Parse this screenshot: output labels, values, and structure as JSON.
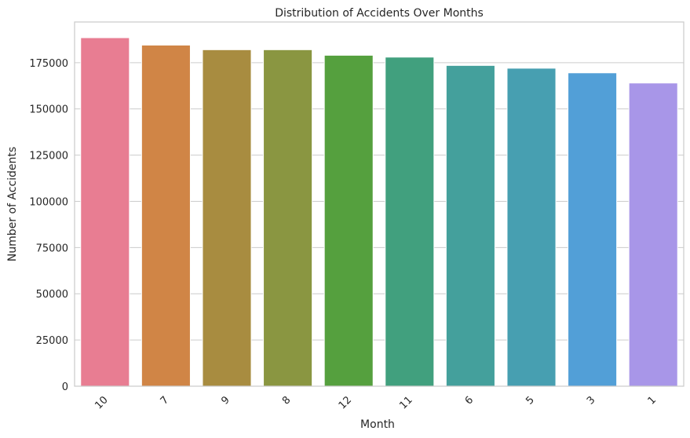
{
  "chart_data": {
    "type": "bar",
    "title": "Distribution of Accidents Over Months",
    "xlabel": "Month",
    "ylabel": "Number of Accidents",
    "categories": [
      "10",
      "7",
      "9",
      "8",
      "12",
      "11",
      "6",
      "5",
      "3",
      "1"
    ],
    "values": [
      188500,
      184500,
      182000,
      182000,
      179000,
      178000,
      173500,
      172000,
      169500,
      164000
    ],
    "colors": [
      "#e87d92",
      "#d08546",
      "#a88c40",
      "#8a9641",
      "#55a03e",
      "#41a07e",
      "#44a09c",
      "#479fb1",
      "#529fd7",
      "#a896e8"
    ],
    "ylim": [
      0,
      197000
    ],
    "yticks": [
      0,
      25000,
      50000,
      75000,
      100000,
      125000,
      150000,
      175000
    ],
    "grid": true,
    "legend": "none"
  }
}
